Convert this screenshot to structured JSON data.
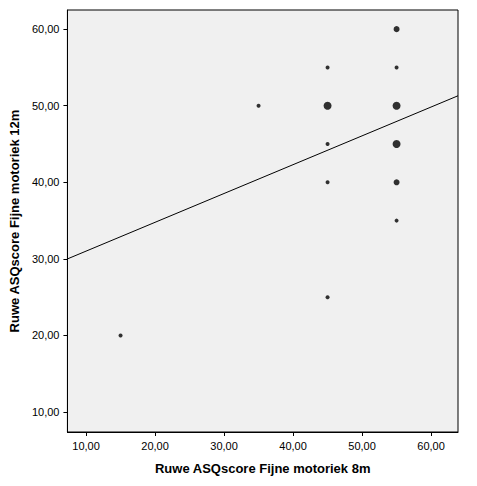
{
  "chart_data": {
    "type": "scatter",
    "x_label": "Ruwe ASQscore Fijne motoriek 8m",
    "y_label": "Ruwe ASQscore Fijne motoriek 12m",
    "x": [
      15,
      35,
      45,
      45,
      45,
      45,
      45,
      55,
      55,
      55,
      55,
      55,
      55
    ],
    "y": [
      20,
      50,
      55,
      50,
      45,
      40,
      25,
      60,
      55,
      50,
      45,
      40,
      35
    ],
    "counts": [
      1,
      1,
      1,
      3,
      1,
      1,
      1,
      2,
      1,
      3,
      3,
      2,
      1
    ],
    "color": "#000000",
    "fit_line": {
      "x": [
        7.3,
        63.9
      ],
      "y": [
        30.0,
        51.3
      ]
    },
    "xlim": [
      7.3,
      63.9
    ],
    "ylim": [
      7.4,
      62.5
    ],
    "xticks": [
      {
        "value": 10,
        "label": "10,00"
      },
      {
        "value": 20,
        "label": "20,00"
      },
      {
        "value": 30,
        "label": "30,00"
      },
      {
        "value": 40,
        "label": "40,00"
      },
      {
        "value": 50,
        "label": "50,00"
      },
      {
        "value": 60,
        "label": "60,00"
      }
    ],
    "yticks": [
      {
        "value": 10,
        "label": "10,00"
      },
      {
        "value": 20,
        "label": "20,00"
      },
      {
        "value": 30,
        "label": "30,00"
      },
      {
        "value": 40,
        "label": "40,00"
      },
      {
        "value": 50,
        "label": "50,00"
      },
      {
        "value": 60,
        "label": "60,00"
      }
    ],
    "grid": false
  }
}
